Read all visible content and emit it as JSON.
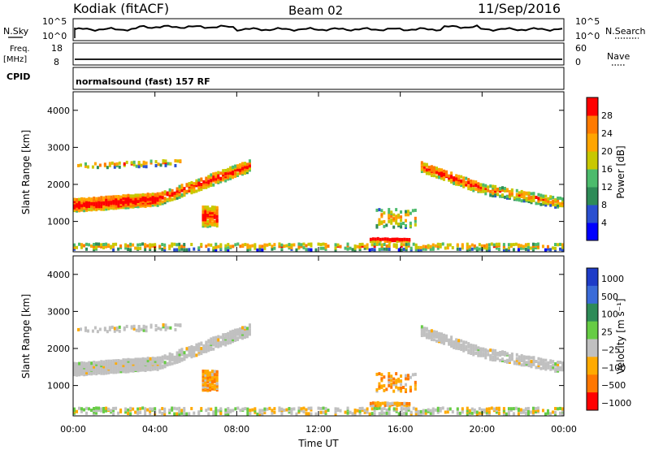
{
  "header": {
    "site": "Kodiak (fitACF)",
    "beam": "Beam 02",
    "date": "11/Sep/2016"
  },
  "panels": {
    "nsky_label": "N.Sky",
    "nsearch_label": "N.Search",
    "nsky_ticks": [
      "10^5",
      "10^0"
    ],
    "nsearch_ticks": [
      "10^5",
      "10^0"
    ],
    "freq_label_1": "Freq.",
    "freq_label_2": "[MHz]",
    "freq_ticks": [
      "18",
      "8"
    ],
    "nave_label": "Nave",
    "nave_ticks": [
      "60",
      "0"
    ],
    "cpid_label": "CPID",
    "cpid_value": "normalsound (fast) 157 RF"
  },
  "chart_data": {
    "type": "heatmap",
    "xlabel": "Time UT",
    "x_ticks": [
      "00:00",
      "04:00",
      "08:00",
      "12:00",
      "16:00",
      "20:00",
      "00:00"
    ],
    "xlim_hours": [
      0,
      24
    ],
    "ylabel": "Slant Range [km]",
    "ylim": [
      180,
      4500
    ],
    "y_ticks": [
      1000,
      2000,
      3000,
      4000
    ],
    "power_scale": {
      "label": "Power [dB]",
      "ticks": [
        "28",
        "24",
        "20",
        "16",
        "12",
        "8",
        "4"
      ],
      "colors": [
        "#0000ff",
        "#2a4fd0",
        "#2e8b57",
        "#4cbb6c",
        "#c8c800",
        "#ffa500",
        "#ff7a00",
        "#ff0000"
      ]
    },
    "velocity_scale": {
      "label": "Velocity [m s⁻¹]",
      "ticks": [
        "1000",
        "500",
        "100",
        "25",
        "−25",
        "−100",
        "−500",
        "−1000"
      ],
      "colors": [
        "#1e3cc8",
        "#3a6bd8",
        "#2e8b57",
        "#66cc44",
        "#c0c0c0",
        "#ffaa00",
        "#ff7700",
        "#ff0000"
      ]
    },
    "nsky_search_level": 0.45
  }
}
